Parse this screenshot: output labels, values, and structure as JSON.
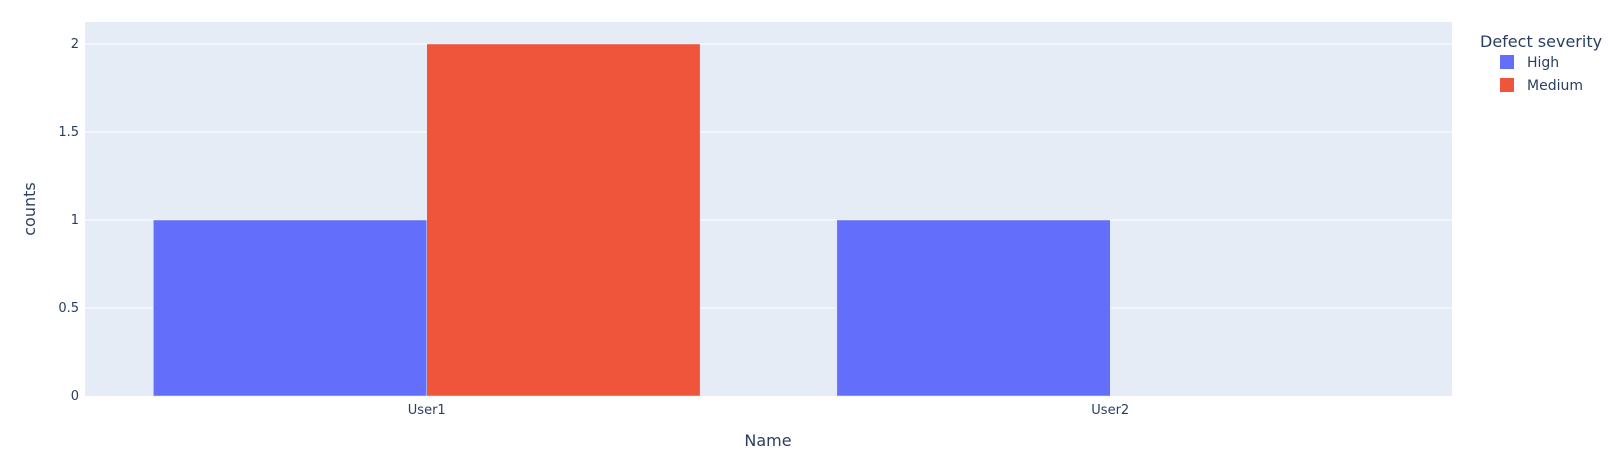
{
  "chart_data": {
    "type": "bar",
    "barmode": "group",
    "categories": [
      "User1",
      "User2"
    ],
    "series": [
      {
        "name": "High",
        "color": "#636efa",
        "values": [
          1,
          1
        ]
      },
      {
        "name": "Medium",
        "color": "#ef553b",
        "values": [
          2,
          0
        ]
      }
    ],
    "xlabel": "Name",
    "ylabel": "counts",
    "ylim": [
      0,
      2
    ],
    "yticks": [
      0,
      0.5,
      1,
      1.5,
      2
    ],
    "ytick_labels": [
      "0",
      "0.5",
      "1",
      "1.5",
      "2"
    ],
    "legend": {
      "title": "Defect severity",
      "placement": "top-right-outside"
    },
    "grid": true,
    "colors": {
      "plot_background": "#e5ecf6",
      "grid": "#ffffff",
      "text": "#2a3f5f"
    }
  }
}
